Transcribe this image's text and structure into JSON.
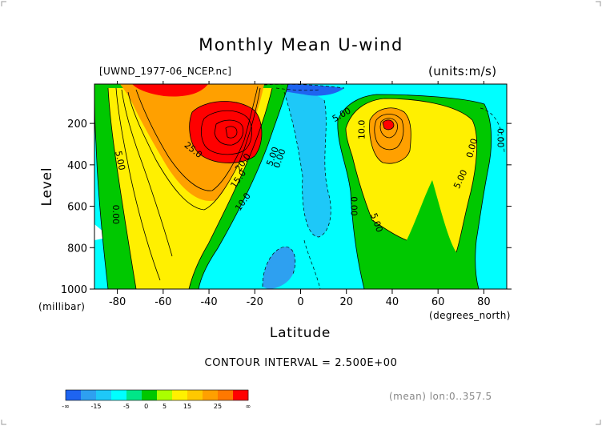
{
  "chart_data": {
    "type": "contour",
    "title": "Monthly Mean U-wind",
    "source_file": "[UWND_1977-06_NCEP.nc]",
    "units": "(units:m/s)",
    "xlabel": "Latitude",
    "x_units": "(degrees_north)",
    "ylabel": "Level",
    "y_units": "(millibar)",
    "x_ticks": [
      -80,
      -60,
      -40,
      -20,
      0,
      20,
      40,
      60,
      80
    ],
    "y_ticks": [
      200,
      400,
      600,
      800,
      1000
    ],
    "xlim": [
      -90,
      90
    ],
    "ylim": [
      1000,
      10
    ],
    "contour_interval_text": "CONTOUR INTERVAL = 2.500E+00",
    "stats_text": "(mean) lon:0..357.5",
    "contour_labels": [
      {
        "text": "25.0",
        "lat": -47,
        "lev": 330,
        "angle": 38
      },
      {
        "text": "20.0",
        "lat": -25,
        "lev": 390,
        "angle": -55
      },
      {
        "text": "15.0",
        "lat": -27,
        "lev": 470,
        "angle": -55
      },
      {
        "text": "10.0",
        "lat": -25,
        "lev": 580,
        "angle": -55
      },
      {
        "text": "5.00",
        "lat": -12,
        "lev": 360,
        "angle": -70
      },
      {
        "text": "0.00",
        "lat": -9,
        "lev": 370,
        "angle": -70
      },
      {
        "text": "5.00",
        "lat": -79,
        "lev": 380,
        "angle": 78
      },
      {
        "text": "0.00",
        "lat": -81,
        "lev": 640,
        "angle": 90
      },
      {
        "text": "5.00",
        "lat": 18,
        "lev": 160,
        "angle": -30
      },
      {
        "text": "10.0",
        "lat": 27,
        "lev": 230,
        "angle": -90
      },
      {
        "text": "0.00",
        "lat": 23,
        "lev": 600,
        "angle": 90
      },
      {
        "text": "5.00",
        "lat": 33,
        "lev": 680,
        "angle": 70
      },
      {
        "text": "5.00",
        "lat": 70,
        "lev": 470,
        "angle": -65
      },
      {
        "text": "0.00",
        "lat": 75,
        "lev": 320,
        "angle": -75
      },
      {
        "text": "0.00",
        "lat": 87,
        "lev": 270,
        "angle": 90
      }
    ],
    "colorbar": {
      "colors": [
        "#1e64f0",
        "#2ea0f0",
        "#1ec8f8",
        "#00ffff",
        "#00e688",
        "#00c800",
        "#aaff00",
        "#fff000",
        "#ffc800",
        "#ffa000",
        "#ff7800",
        "#ff0000"
      ],
      "labels": [
        "-∞",
        "-15",
        "-5",
        "0",
        "5",
        "15",
        "25",
        "∞"
      ]
    }
  }
}
